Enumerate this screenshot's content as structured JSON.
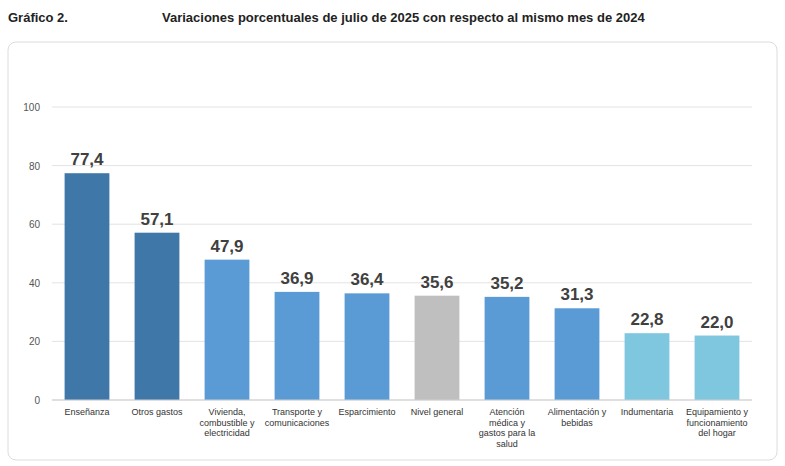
{
  "chart_data": {
    "type": "bar",
    "title": "Variaciones porcentuales de julio de 2025 con respecto al mismo mes de 2024",
    "annotations": [
      "Gráfico 2."
    ],
    "categories": [
      "Enseñanza",
      "Otros gastos",
      "Vivienda, combustible y electricidad",
      "Transporte y comunicaciones",
      "Esparcimiento",
      "Nivel general",
      "Atención médica y gastos para la salud",
      "Alimentación y bebidas",
      "Indumentaria",
      "Equipamiento y funcionamiento del hogar"
    ],
    "values": [
      77.4,
      57.1,
      47.9,
      36.9,
      36.4,
      35.6,
      35.2,
      31.3,
      22.8,
      22.0
    ],
    "value_labels": [
      "77,4",
      "57,1",
      "47,9",
      "36,9",
      "36,4",
      "35,6",
      "35,2",
      "31,3",
      "22,8",
      "22,0"
    ],
    "colors": [
      "#3f77a8",
      "#3f77a8",
      "#5b9bd5",
      "#5b9bd5",
      "#5b9bd5",
      "#bfbfbf",
      "#5b9bd5",
      "#5b9bd5",
      "#7fc6df",
      "#7fc6df"
    ],
    "ylim": [
      0,
      100
    ],
    "yticks": [
      0,
      20,
      40,
      60,
      80,
      100
    ],
    "grid": true,
    "data_labels": true
  }
}
